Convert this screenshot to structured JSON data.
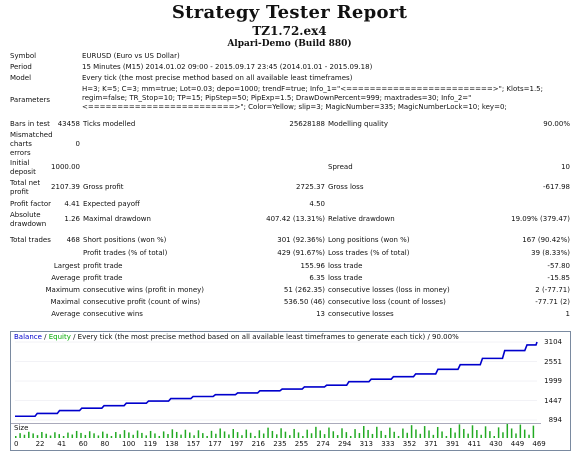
{
  "report": {
    "title": "Strategy Tester Report",
    "subtitle": "TZ1.72.ex4",
    "broker": "Alpari-Demo (Build 880)"
  },
  "info": {
    "symbol_label": "Symbol",
    "symbol_value": "EURUSD (Euro vs US Dollar)",
    "period_label": "Period",
    "period_value": "15 Minutes (M15) 2014.01.02 09:00 - 2015.09.17 23:45 (2014.01.01 - 2015.09.18)",
    "model_label": "Model",
    "model_value": "Every tick (the most precise method based on all available least timeframes)",
    "params_label": "Parameters",
    "params_value": "H=3; K=5; C=3; mm=true; Lot=0.03; depo=1000; trendF=true; Info_1=\"<=========================>\"; Klots=1.5; regim=false; TR_Stop=10; TP=15; PipStep=50; PipExp=1.5; DrawDownPercent=999; maxtrades=30; Info_2=\"<=========================>\"; Color=Yellow; slip=3; MagicNumber=335; MagicNumberLock=10; key=0;"
  },
  "stats": {
    "bars_label": "Bars in test",
    "bars_value": "43458",
    "ticks_label": "Ticks modelled",
    "ticks_value": "25628188",
    "quality_label": "Modelling quality",
    "quality_value": "90.00%",
    "mismatch_label": "Mismatched charts errors",
    "mismatch_value": "0",
    "initial_label": "Initial deposit",
    "initial_value": "1000.00",
    "spread_label": "Spread",
    "spread_value": "10",
    "net_label": "Total net profit",
    "net_value": "2107.39",
    "gprofit_label": "Gross profit",
    "gprofit_value": "2725.37",
    "gloss_label": "Gross loss",
    "gloss_value": "-617.98",
    "pf_label": "Profit factor",
    "pf_value": "4.41",
    "ep_label": "Expected payoff",
    "ep_value": "4.50",
    "absdd_label": "Absolute drawdown",
    "absdd_value": "1.26",
    "maxdd_label": "Maximal drawdown",
    "maxdd_value": "407.42 (13.31%)",
    "reldd_label": "Relative drawdown",
    "reldd_value": "19.09% (379.47)",
    "trades_label": "Total trades",
    "trades_value": "468",
    "short_label": "Short positions (won %)",
    "short_value": "301 (92.36%)",
    "long_label": "Long positions (won %)",
    "long_value": "167 (90.42%)",
    "ptrades_label": "Profit trades (% of total)",
    "ptrades_value": "429 (91.67%)",
    "ltrades_label": "Loss trades (% of total)",
    "ltrades_value": "39 (8.33%)",
    "largest_label": "Largest",
    "lp_label": "profit trade",
    "lp_value": "155.96",
    "ll_label": "loss trade",
    "ll_value": "-57.80",
    "average_label": "Average",
    "ap_label": "profit trade",
    "ap_value": "6.35",
    "al_label": "loss trade",
    "al_value": "-15.85",
    "maximum_label": "Maximum",
    "mcw_label": "consecutive wins (profit in money)",
    "mcw_value": "51 (262.35)",
    "mcl_label": "consecutive losses (loss in money)",
    "mcl_value": "2 (-77.71)",
    "maximal_label": "Maximal",
    "mcp_label": "consecutive profit (count of wins)",
    "mcp_value": "536.50 (46)",
    "mcls_label": "consecutive loss (count of losses)",
    "mcls_value": "-77.71 (2)",
    "average2_label": "Average",
    "acw_label": "consecutive wins",
    "acw_value": "13",
    "acl_label": "consecutive losses",
    "acl_value": "1"
  },
  "chart": {
    "legend_balance": "Balance",
    "legend_sep": " / ",
    "legend_equity": "Equity",
    "legend_rest": " / Every tick (the most precise method based on all available least timeframes to generate each tick) / 90.00%",
    "y_ticks": [
      "3104",
      "2551",
      "1999",
      "1447",
      "894"
    ],
    "x_ticks": [
      "0",
      "22",
      "41",
      "60",
      "80",
      "100",
      "119",
      "138",
      "157",
      "177",
      "197",
      "216",
      "235",
      "255",
      "274",
      "294",
      "313",
      "333",
      "352",
      "371",
      "391",
      "411",
      "430",
      "449",
      "469"
    ],
    "size_label": "Size",
    "balance_color": "#0000cc",
    "equity_color": "#00aa00",
    "size_color": "#22aa22",
    "chart_data": {
      "type": "line",
      "x": [
        0,
        20,
        40,
        60,
        80,
        100,
        120,
        140,
        160,
        180,
        200,
        220,
        240,
        260,
        280,
        300,
        320,
        340,
        360,
        380,
        400,
        420,
        440,
        460,
        469
      ],
      "series": [
        {
          "name": "Balance",
          "values": [
            1000,
            1080,
            1160,
            1230,
            1300,
            1370,
            1430,
            1500,
            1560,
            1610,
            1660,
            1720,
            1770,
            1830,
            1880,
            1980,
            2050,
            2120,
            2200,
            2330,
            2460,
            2640,
            2860,
            3020,
            3104
          ]
        }
      ],
      "ylim": [
        894,
        3104
      ]
    }
  }
}
